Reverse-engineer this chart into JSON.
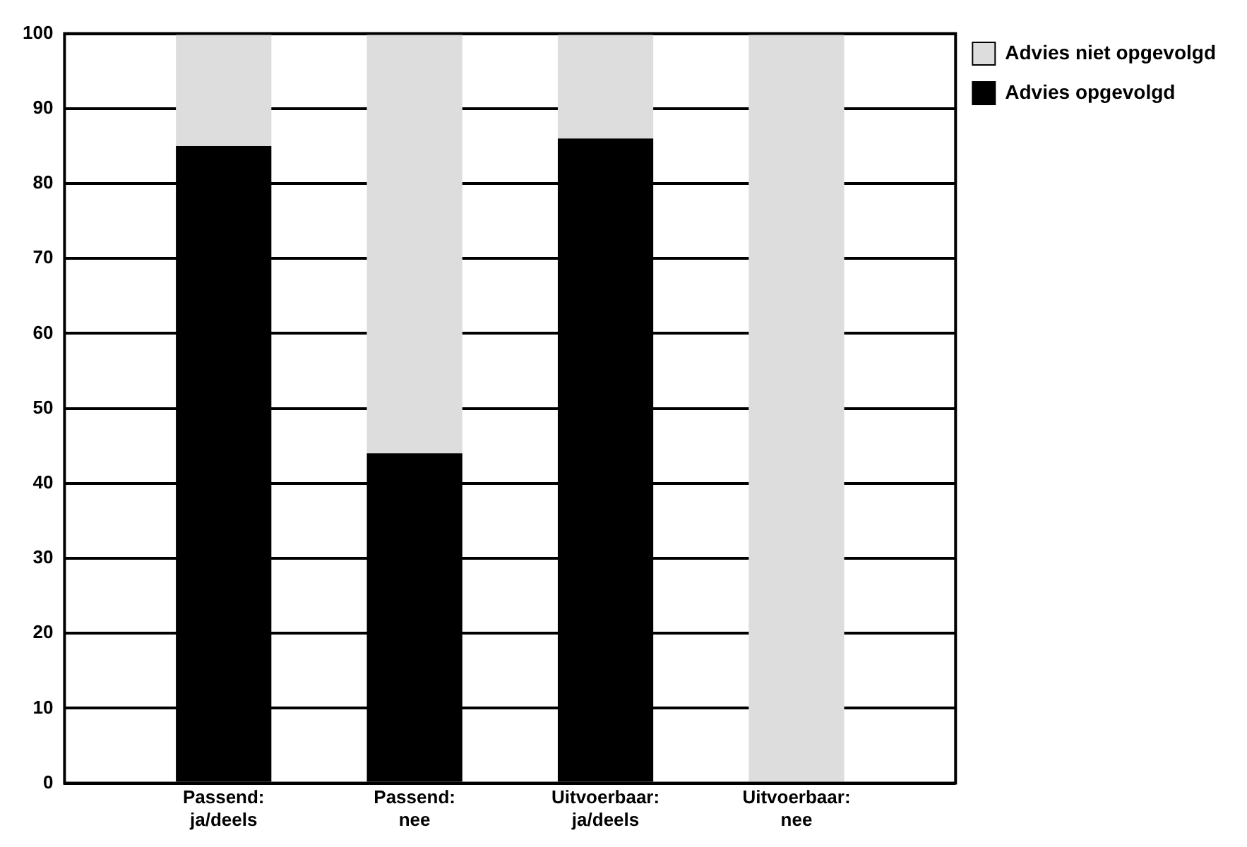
{
  "chart_data": {
    "type": "bar",
    "stacked": true,
    "categories": [
      "Passend: ja/deels",
      "Passend: nee",
      "Uitvoerbaar: ja/deels",
      "Uitvoerbaar: nee"
    ],
    "series": [
      {
        "name": "Advies opgevolgd",
        "color": "#000000",
        "values": [
          85,
          44,
          86,
          0
        ]
      },
      {
        "name": "Advies niet opgevolgd",
        "color": "#dddddd",
        "values": [
          15,
          56,
          14,
          100
        ]
      }
    ],
    "ylim": [
      0,
      100
    ],
    "yticks": [
      0,
      10,
      20,
      30,
      40,
      50,
      60,
      70,
      80,
      90,
      100
    ],
    "grid": "y",
    "legend": "top right"
  }
}
